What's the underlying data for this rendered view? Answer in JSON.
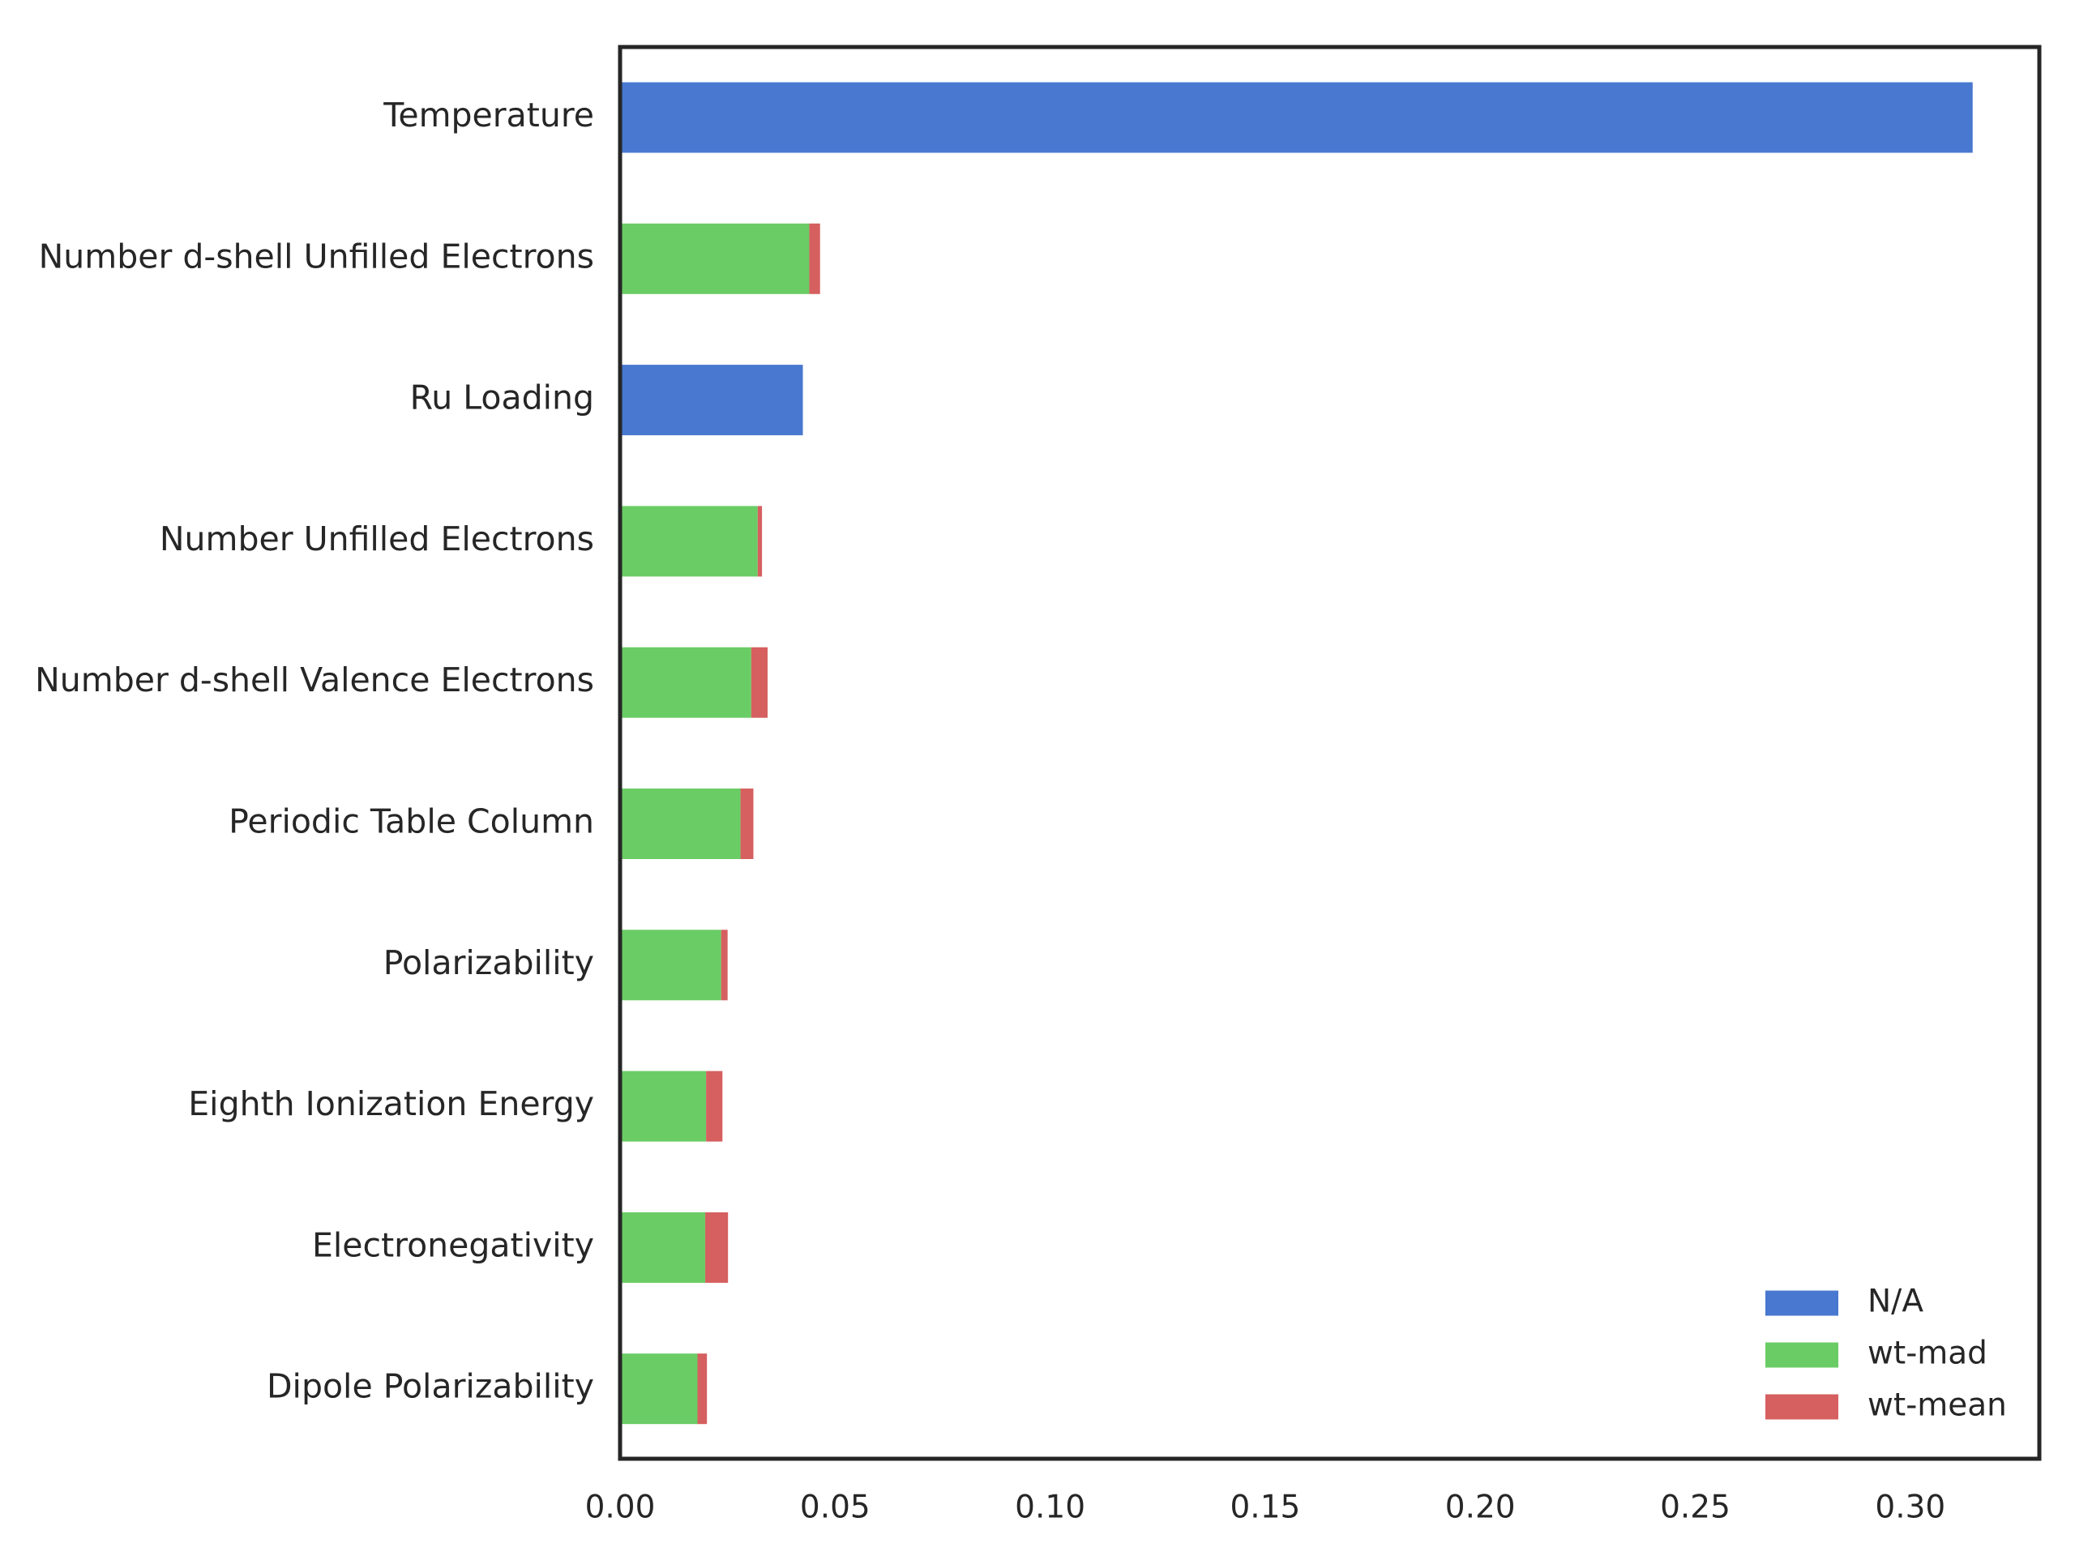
{
  "chart_data": {
    "type": "bar",
    "orientation": "horizontal",
    "stacked": true,
    "categories": [
      "Temperature",
      "Number d-shell Unfilled Electrons",
      "Ru Loading",
      "Number Unfilled Electrons",
      "Number d-shell Valence Electrons",
      "Periodic Table Column",
      "Polarizability",
      "Eighth Ionization Energy",
      "Electronegativity",
      "Dipole Polarizability"
    ],
    "series": [
      {
        "name": "N/A",
        "color": "#4878cf",
        "values": [
          0.3145,
          0,
          0.0425,
          0,
          0,
          0,
          0,
          0,
          0,
          0
        ]
      },
      {
        "name": "wt-mad",
        "color": "#6acc65",
        "values": [
          0,
          0.044,
          0,
          0.032,
          0.0305,
          0.028,
          0.0235,
          0.02,
          0.0198,
          0.018
        ]
      },
      {
        "name": "wt-mean",
        "color": "#d65f5f",
        "values": [
          0,
          0.0025,
          0,
          0.001,
          0.0038,
          0.003,
          0.0015,
          0.0038,
          0.0053,
          0.0022
        ]
      }
    ],
    "xlim": [
      0.0,
      0.33
    ],
    "xticks": [
      "0.00",
      "0.05",
      "0.10",
      "0.15",
      "0.20",
      "0.25",
      "0.30"
    ],
    "xtick_values": [
      0.0,
      0.05,
      0.1,
      0.15,
      0.2,
      0.25,
      0.3
    ],
    "title": "",
    "xlabel": "",
    "ylabel": "",
    "grid": false,
    "legend_position": "bottom-right"
  }
}
